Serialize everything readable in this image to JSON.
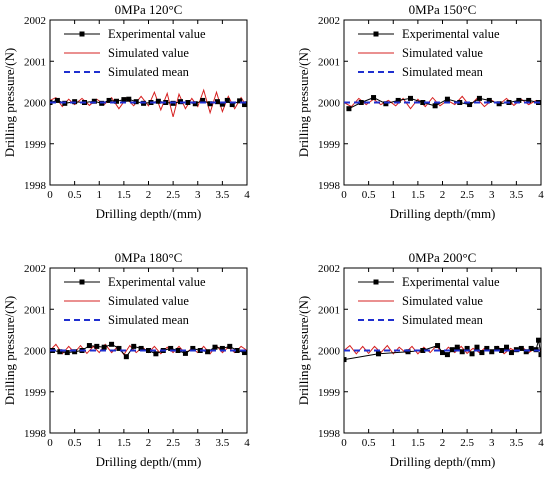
{
  "colors": {
    "experimental": "#000000",
    "simulated": "#d62020",
    "mean": "#1f2fd0",
    "axis": "#000000"
  },
  "chart_data": [
    {
      "type": "line",
      "title": "0MPa 120°C",
      "xlabel": "Drilling depth/(mm)",
      "ylabel": "Drilling pressure/(N)",
      "xlim": [
        0,
        4
      ],
      "ylim": [
        1998,
        2002
      ],
      "xticks": [
        "0",
        "0.5",
        "1",
        "1.5",
        "2",
        "2.5",
        "3",
        "3.5",
        "4"
      ],
      "yticks": [
        "1998",
        "1999",
        "2000",
        "2001",
        "2002"
      ],
      "legend_position": "top-right",
      "series": [
        {
          "name": "Experimental value",
          "style": "line-with-square-markers",
          "x": [
            0.0,
            0.15,
            0.3,
            0.5,
            0.7,
            0.9,
            1.05,
            1.2,
            1.35,
            1.5,
            1.6,
            1.75,
            1.9,
            2.05,
            2.2,
            2.35,
            2.5,
            2.65,
            2.8,
            2.95,
            3.1,
            3.25,
            3.4,
            3.5,
            3.6,
            3.7,
            3.85,
            3.95,
            4.0
          ],
          "y": [
            2000.0,
            2000.05,
            1999.98,
            2000.02,
            2000.0,
            2000.03,
            1999.98,
            2000.05,
            2000.03,
            2000.07,
            2000.08,
            2000.02,
            1999.98,
            2000.0,
            2000.03,
            2000.0,
            1999.98,
            2000.02,
            2000.0,
            1999.97,
            2000.05,
            1999.97,
            2000.02,
            1999.96,
            2000.05,
            1999.95,
            2000.04,
            1999.95,
            1999.97
          ]
        },
        {
          "name": "Simulated value",
          "style": "line",
          "x": [
            0.0,
            0.12,
            0.25,
            0.38,
            0.5,
            0.65,
            0.8,
            0.95,
            1.1,
            1.25,
            1.4,
            1.55,
            1.7,
            1.85,
            2.0,
            2.12,
            2.25,
            2.38,
            2.5,
            2.62,
            2.75,
            2.88,
            3.0,
            3.12,
            3.25,
            3.38,
            3.5,
            3.62,
            3.75,
            3.88,
            4.0
          ],
          "y": [
            2000.05,
            2000.12,
            1999.9,
            2000.08,
            1999.95,
            2000.1,
            1999.93,
            2000.08,
            1999.95,
            2000.12,
            1999.85,
            2000.1,
            1999.92,
            2000.15,
            1999.92,
            2000.25,
            1999.82,
            2000.22,
            1999.65,
            2000.2,
            1999.85,
            2000.1,
            1999.9,
            2000.3,
            1999.75,
            2000.25,
            1999.78,
            2000.15,
            1999.85,
            2000.12,
            1999.9
          ]
        },
        {
          "name": "Simulated mean",
          "style": "dashed",
          "x": [
            0,
            4
          ],
          "y": [
            2000.0,
            2000.0
          ]
        }
      ]
    },
    {
      "type": "line",
      "title": "0MPa 150°C",
      "xlabel": "Drilling depth/(mm)",
      "ylabel": "Drilling pressure/(N)",
      "xlim": [
        0,
        4
      ],
      "ylim": [
        1998,
        2002
      ],
      "xticks": [
        "0",
        "0.5",
        "1",
        "1.5",
        "2",
        "2.5",
        "3",
        "3.5",
        "4"
      ],
      "yticks": [
        "1998",
        "1999",
        "2000",
        "2001",
        "2002"
      ],
      "legend_position": "top-right",
      "series": [
        {
          "name": "Experimental value",
          "style": "line-with-square-markers",
          "x": [
            0.1,
            0.35,
            0.6,
            0.85,
            1.1,
            1.35,
            1.6,
            1.85,
            2.1,
            2.35,
            2.55,
            2.75,
            2.95,
            3.15,
            3.35,
            3.55,
            3.75,
            3.95
          ],
          "y": [
            1999.85,
            2000.0,
            2000.12,
            1999.97,
            2000.05,
            2000.1,
            2000.0,
            1999.92,
            2000.08,
            2000.0,
            1999.95,
            2000.1,
            2000.05,
            1999.97,
            2000.0,
            2000.05,
            2000.05,
            2000.0
          ]
        },
        {
          "name": "Simulated value",
          "style": "line",
          "x": [
            0.0,
            0.15,
            0.3,
            0.45,
            0.6,
            0.75,
            0.9,
            1.05,
            1.2,
            1.35,
            1.5,
            1.65,
            1.8,
            1.95,
            2.1,
            2.25,
            2.4,
            2.55,
            2.7,
            2.85,
            3.0,
            3.15,
            3.3,
            3.45,
            3.6,
            3.75,
            3.9,
            4.0
          ],
          "y": [
            2000.0,
            1999.9,
            2000.1,
            1999.95,
            2000.08,
            1999.95,
            2000.05,
            1999.92,
            2000.1,
            1999.85,
            2000.08,
            1999.9,
            2000.12,
            1999.92,
            2000.05,
            1999.95,
            2000.15,
            1999.92,
            2000.1,
            1999.9,
            2000.05,
            1999.95,
            2000.1,
            1999.93,
            2000.08,
            1999.95,
            2000.05,
            2000.0
          ]
        },
        {
          "name": "Simulated mean",
          "style": "dashed",
          "x": [
            0,
            4
          ],
          "y": [
            2000.0,
            2000.0
          ]
        }
      ]
    },
    {
      "type": "line",
      "title": "0MPa 180°C",
      "xlabel": "Drilling depth/(mm)",
      "ylabel": "Drilling pressure/(N)",
      "xlim": [
        0,
        4
      ],
      "ylim": [
        1998,
        2002
      ],
      "xticks": [
        "0",
        "0.5",
        "1",
        "1.5",
        "2",
        "2.5",
        "3",
        "3.5",
        "4"
      ],
      "yticks": [
        "1998",
        "1999",
        "2000",
        "2001",
        "2002"
      ],
      "legend_position": "top-right",
      "series": [
        {
          "name": "Experimental value",
          "style": "line-with-square-markers",
          "x": [
            0.05,
            0.2,
            0.35,
            0.5,
            0.65,
            0.8,
            0.95,
            1.1,
            1.25,
            1.4,
            1.55,
            1.7,
            1.85,
            2.0,
            2.15,
            2.3,
            2.45,
            2.6,
            2.75,
            2.9,
            3.05,
            3.2,
            3.35,
            3.5,
            3.65,
            3.8,
            3.95
          ],
          "y": [
            2000.0,
            1999.97,
            1999.95,
            1999.97,
            2000.0,
            2000.12,
            2000.1,
            2000.08,
            2000.15,
            2000.05,
            1999.85,
            2000.1,
            2000.05,
            2000.0,
            1999.92,
            2000.0,
            2000.05,
            2000.0,
            1999.93,
            2000.05,
            2000.0,
            1999.97,
            2000.08,
            2000.05,
            2000.1,
            2000.0,
            1999.95
          ]
        },
        {
          "name": "Simulated value",
          "style": "line",
          "x": [
            0.0,
            0.12,
            0.25,
            0.38,
            0.5,
            0.62,
            0.75,
            0.88,
            1.0,
            1.12,
            1.25,
            1.38,
            1.5,
            1.62,
            1.75,
            1.88,
            2.0,
            2.12,
            2.25,
            2.38,
            2.5,
            2.62,
            2.75,
            2.88,
            3.0,
            3.12,
            3.25,
            3.38,
            3.5,
            3.62,
            3.75,
            3.88,
            4.0
          ],
          "y": [
            2000.0,
            2000.15,
            1999.92,
            2000.1,
            1999.95,
            2000.12,
            1999.93,
            2000.1,
            1999.95,
            2000.15,
            1999.95,
            2000.1,
            1999.9,
            2000.12,
            1999.95,
            2000.08,
            1999.95,
            2000.1,
            1999.92,
            2000.08,
            1999.95,
            2000.1,
            1999.93,
            2000.05,
            1999.95,
            2000.1,
            1999.92,
            2000.12,
            1999.95,
            2000.08,
            1999.95,
            2000.1,
            2000.0
          ]
        },
        {
          "name": "Simulated mean",
          "style": "dashed",
          "x": [
            0,
            4
          ],
          "y": [
            2000.0,
            2000.0
          ]
        }
      ]
    },
    {
      "type": "line",
      "title": "0MPa 200°C",
      "xlabel": "Drilling depth/(mm)",
      "ylabel": "Drilling pressure/(N)",
      "xlim": [
        0,
        4
      ],
      "ylim": [
        1998,
        2002
      ],
      "xticks": [
        "0",
        "0.5",
        "1",
        "1.5",
        "2",
        "2.5",
        "3",
        "3.5",
        "4"
      ],
      "yticks": [
        "1998",
        "1999",
        "2000",
        "2001",
        "2002"
      ],
      "legend_position": "top-right",
      "series": [
        {
          "name": "Experimental value",
          "style": "line-with-square-markers",
          "x": [
            0.0,
            0.7,
            1.3,
            1.6,
            1.9,
            2.0,
            2.1,
            2.2,
            2.3,
            2.4,
            2.5,
            2.6,
            2.7,
            2.8,
            2.9,
            3.0,
            3.1,
            3.2,
            3.3,
            3.4,
            3.5,
            3.6,
            3.7,
            3.8,
            3.9,
            3.95,
            4.0
          ],
          "y": [
            1999.78,
            1999.92,
            1999.97,
            2000.0,
            2000.12,
            1999.95,
            1999.9,
            2000.02,
            2000.08,
            1999.97,
            2000.05,
            1999.92,
            2000.08,
            1999.95,
            2000.05,
            1999.97,
            2000.05,
            2000.0,
            2000.08,
            1999.95,
            2000.02,
            2000.05,
            1999.97,
            2000.05,
            2000.02,
            2000.25,
            1999.9
          ]
        },
        {
          "name": "Simulated value",
          "style": "line",
          "x": [
            0.0,
            0.12,
            0.25,
            0.38,
            0.5,
            0.62,
            0.75,
            0.88,
            1.0,
            1.12,
            1.25,
            1.38,
            1.5,
            1.62,
            1.75,
            1.88,
            2.0,
            2.12,
            2.25,
            2.38,
            2.5,
            2.62,
            2.75,
            2.88,
            3.0,
            3.12,
            3.25,
            3.38,
            3.5,
            3.62,
            3.75,
            3.88,
            4.0
          ],
          "y": [
            2000.0,
            2000.12,
            1999.92,
            2000.1,
            1999.93,
            2000.1,
            1999.95,
            2000.12,
            1999.92,
            2000.08,
            1999.95,
            2000.1,
            1999.92,
            2000.08,
            1999.95,
            2000.12,
            1999.92,
            2000.08,
            1999.95,
            2000.1,
            1999.93,
            2000.05,
            1999.95,
            2000.08,
            1999.95,
            2000.1,
            1999.92,
            2000.05,
            1999.97,
            2000.08,
            1999.95,
            2000.05,
            2000.0
          ]
        },
        {
          "name": "Simulated mean",
          "style": "dashed",
          "x": [
            0,
            4
          ],
          "y": [
            2000.0,
            2000.0
          ]
        }
      ]
    }
  ]
}
